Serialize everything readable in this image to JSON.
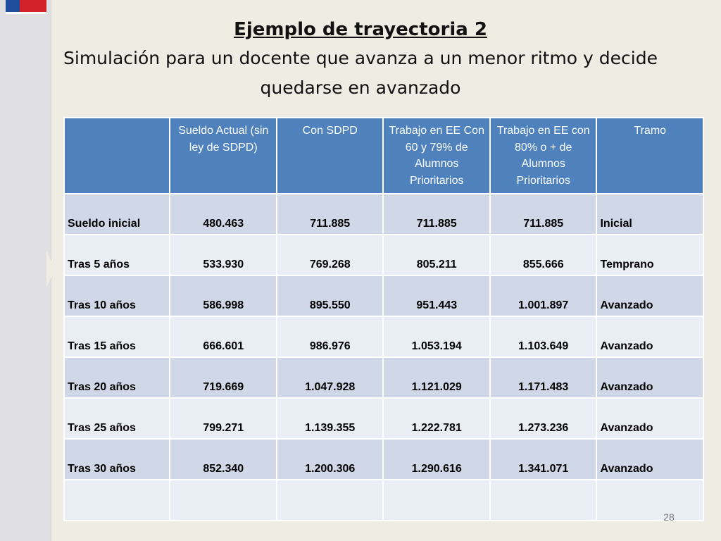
{
  "title": {
    "main": "Ejemplo de trayectoria 2",
    "line1": "Simulación para un docente que avanza a un menor ritmo y decide",
    "line2": "quedarse en avanzado"
  },
  "table": {
    "headers": [
      "",
      "Sueldo Actual (sin ley de SDPD)",
      "Con SDPD",
      "Trabajo en EE Con 60 y 79% de Alumnos Prioritarios",
      "Trabajo en EE con 80% o + de Alumnos Prioritarios",
      "Tramo"
    ],
    "rows": [
      {
        "label": "Sueldo inicial",
        "actual": "480.463",
        "sdpd": "711.885",
        "ee60": "711.885",
        "ee80": "711.885",
        "tramo": "Inicial"
      },
      {
        "label": "Tras 5 años",
        "actual": "533.930",
        "sdpd": "769.268",
        "ee60": "805.211",
        "ee80": "855.666",
        "tramo": "Temprano"
      },
      {
        "label": "Tras 10 años",
        "actual": "586.998",
        "sdpd": "895.550",
        "ee60": "951.443",
        "ee80": "1.001.897",
        "tramo": "Avanzado"
      },
      {
        "label": "Tras 15 años",
        "actual": "666.601",
        "sdpd": "986.976",
        "ee60": "1.053.194",
        "ee80": "1.103.649",
        "tramo": "Avanzado"
      },
      {
        "label": "Tras 20 años",
        "actual": "719.669",
        "sdpd": "1.047.928",
        "ee60": "1.121.029",
        "ee80": "1.171.483",
        "tramo": "Avanzado"
      },
      {
        "label": "Tras 25 años",
        "actual": "799.271",
        "sdpd": "1.139.355",
        "ee60": "1.222.781",
        "ee80": "1.273.236",
        "tramo": "Avanzado"
      },
      {
        "label": "Tras 30 años",
        "actual": "852.340",
        "sdpd": "1.200.306",
        "ee60": "1.290.616",
        "ee80": "1.341.071",
        "tramo": "Avanzado"
      },
      {
        "label": "",
        "actual": "",
        "sdpd": "",
        "ee60": "",
        "ee80": "",
        "tramo": ""
      }
    ]
  },
  "colors": {
    "header_bg": "#4f81bd",
    "row_dark": "#d0d8e8",
    "row_light": "#e9edf4",
    "actual_text": "#e01010",
    "ee60_text": "#1a6fc4",
    "ee80_text": "#7030a0"
  },
  "page_number": "28"
}
